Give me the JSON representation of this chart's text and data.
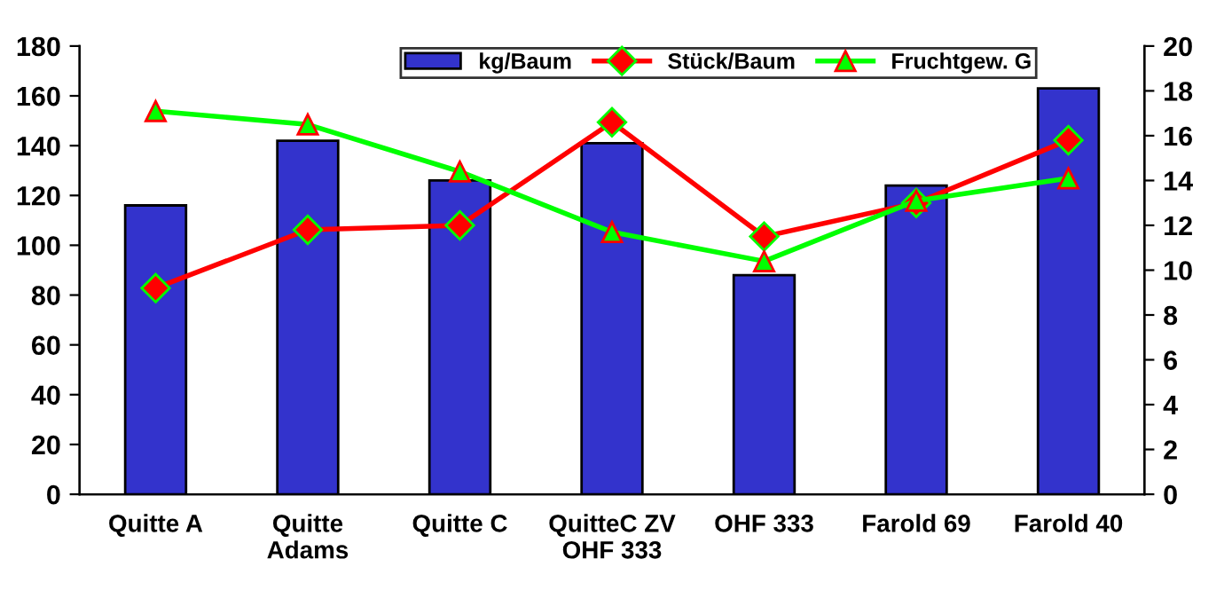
{
  "chart_data": {
    "type": "bar",
    "categories": [
      "Quitte A",
      "Quitte\nAdams",
      "Quitte C",
      "QuitteC ZV\nOHF 333",
      "OHF 333",
      "Farold 69",
      "Farold 40"
    ],
    "series": [
      {
        "name": "kg/Baum",
        "color": "#3333cc",
        "values": [
          116,
          142,
          126,
          141,
          88,
          124,
          163
        ]
      },
      {
        "name": "Stück/Baum",
        "color": "#ff0000",
        "type": "line",
        "axis": "y2",
        "marker": "diamond",
        "values": [
          9.2,
          11.8,
          12.0,
          16.6,
          11.5,
          13.0,
          15.8
        ]
      },
      {
        "name": "Fruchtgew. G",
        "color": "#00ff00",
        "type": "line",
        "axis": "y2",
        "marker": "triangle",
        "values": [
          17.1,
          16.5,
          14.4,
          11.7,
          10.4,
          13.1,
          14.1
        ]
      }
    ],
    "ylim": [
      0,
      180
    ],
    "yticks": [
      0,
      20,
      40,
      60,
      80,
      100,
      120,
      140,
      160,
      180
    ],
    "y2lim": [
      0,
      20
    ],
    "y2ticks": [
      0,
      2,
      4,
      6,
      8,
      10,
      12,
      14,
      16,
      18,
      20
    ],
    "grid": false,
    "legend": "top"
  }
}
